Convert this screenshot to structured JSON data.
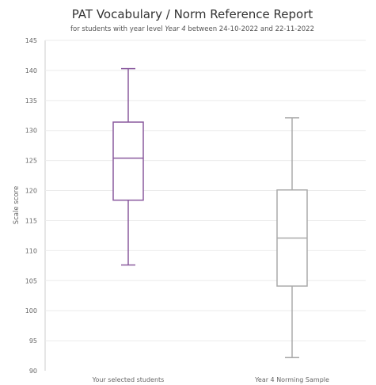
{
  "chart_data": {
    "type": "boxplot",
    "title": "PAT Vocabulary / Norm Reference Report",
    "subtitle": {
      "prefix": "for students with year level ",
      "level": "Year 4",
      "suffix": " between 24-10-2022 and 22-11-2022"
    },
    "xlabel": "",
    "ylabel": "Scale score",
    "ylim": [
      90,
      145
    ],
    "yticks": [
      90,
      95,
      100,
      105,
      110,
      115,
      120,
      125,
      130,
      135,
      140,
      145
    ],
    "grid": true,
    "categories": [
      "Your selected students",
      "Year 4 Norming Sample"
    ],
    "series": [
      {
        "category": "Your selected students",
        "min": 107.6,
        "q1": 118.4,
        "median": 125.4,
        "q3": 131.4,
        "max": 140.3,
        "color": "#8a5a9e"
      },
      {
        "category": "Year 4 Norming Sample",
        "min": 92.2,
        "q1": 104.1,
        "median": 112.1,
        "q3": 120.1,
        "max": 132.1,
        "color": "#aaaaaa"
      }
    ]
  }
}
